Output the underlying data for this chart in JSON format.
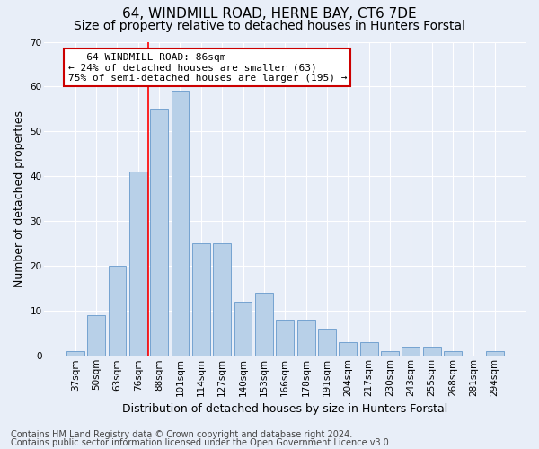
{
  "title": "64, WINDMILL ROAD, HERNE BAY, CT6 7DE",
  "subtitle": "Size of property relative to detached houses in Hunters Forstal",
  "xlabel": "Distribution of detached houses by size in Hunters Forstal",
  "ylabel": "Number of detached properties",
  "categories": [
    "37sqm",
    "50sqm",
    "63sqm",
    "76sqm",
    "88sqm",
    "101sqm",
    "114sqm",
    "127sqm",
    "140sqm",
    "153sqm",
    "166sqm",
    "178sqm",
    "191sqm",
    "204sqm",
    "217sqm",
    "230sqm",
    "243sqm",
    "255sqm",
    "268sqm",
    "281sqm",
    "294sqm"
  ],
  "values": [
    1,
    9,
    20,
    41,
    55,
    59,
    25,
    25,
    12,
    14,
    8,
    8,
    6,
    3,
    3,
    1,
    2,
    2,
    1,
    0,
    1
  ],
  "bar_color": "#b8d0e8",
  "bar_edge_color": "#6699cc",
  "background_color": "#e8eef8",
  "grid_color": "#ffffff",
  "red_line_index": 4,
  "annotation_line1": "   64 WINDMILL ROAD: 86sqm",
  "annotation_line2": "← 24% of detached houses are smaller (63)",
  "annotation_line3": "75% of semi-detached houses are larger (195) →",
  "annotation_box_color": "#ffffff",
  "annotation_box_edge": "#cc0000",
  "ylim": [
    0,
    70
  ],
  "yticks": [
    0,
    10,
    20,
    30,
    40,
    50,
    60,
    70
  ],
  "footer1": "Contains HM Land Registry data © Crown copyright and database right 2024.",
  "footer2": "Contains public sector information licensed under the Open Government Licence v3.0.",
  "title_fontsize": 11,
  "subtitle_fontsize": 10,
  "xlabel_fontsize": 9,
  "ylabel_fontsize": 9,
  "tick_fontsize": 7.5,
  "footer_fontsize": 7,
  "annot_fontsize": 8
}
